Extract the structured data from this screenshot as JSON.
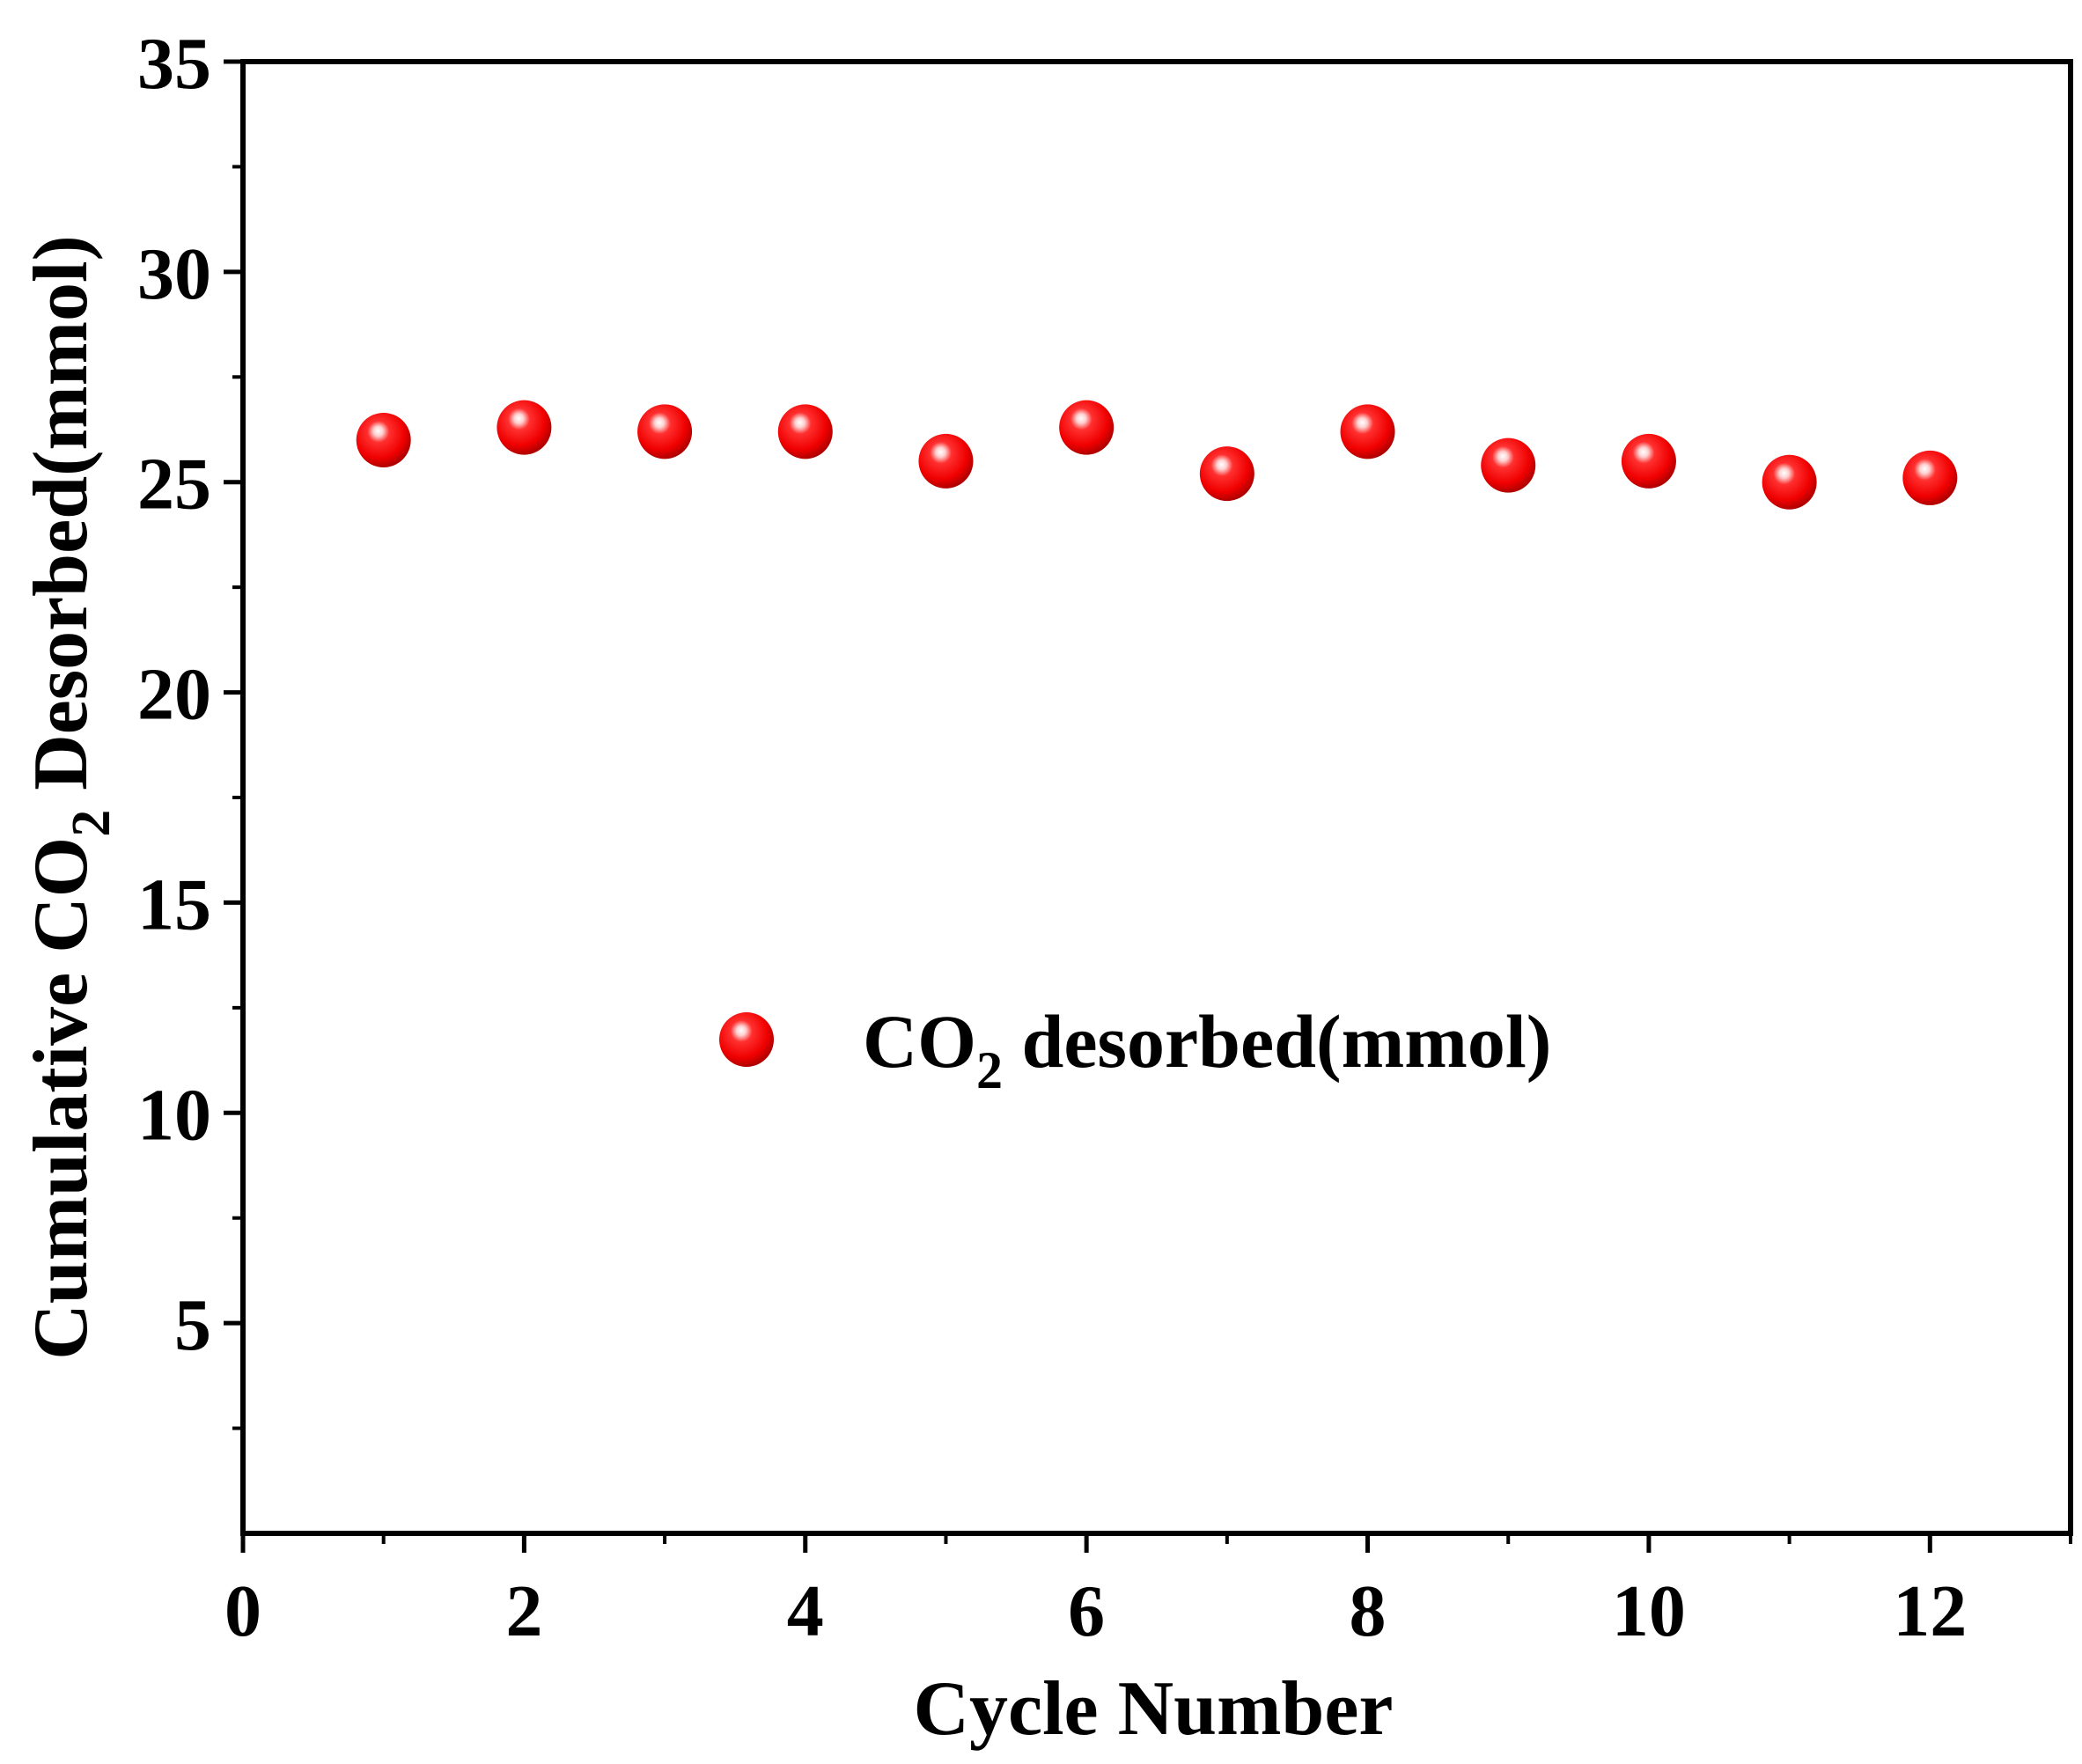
{
  "chart_data": {
    "type": "scatter",
    "title": "",
    "xlabel": "Cycle Number",
    "ylabel": {
      "prefix": "Cumulative CO",
      "subscript": "2",
      "suffix": " Desorbed(mmol)"
    },
    "xlim": [
      0,
      13
    ],
    "ylim": [
      0,
      35
    ],
    "x_ticks": [
      0,
      2,
      4,
      6,
      8,
      10,
      12
    ],
    "y_ticks": [
      5,
      10,
      15,
      20,
      25,
      30,
      35
    ],
    "legend_position": "center",
    "series": [
      {
        "name": "CO2 desorbed(mmol)",
        "label_parts": {
          "prefix": "CO",
          "subscript": "2",
          "suffix": " desorbed(mmol)"
        },
        "color": "#ff0000",
        "marker": "sphere",
        "x": [
          1,
          2,
          3,
          4,
          5,
          6,
          7,
          8,
          9,
          10,
          11,
          12
        ],
        "y": [
          26.0,
          26.3,
          26.2,
          26.2,
          25.5,
          26.3,
          25.2,
          26.2,
          25.4,
          25.5,
          25.0,
          25.1
        ]
      }
    ]
  }
}
